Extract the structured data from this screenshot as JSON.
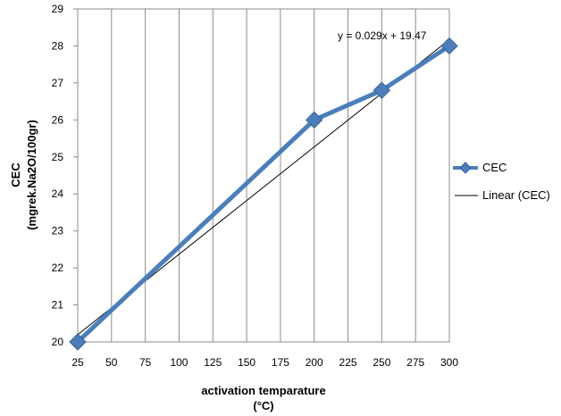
{
  "chart_data": {
    "type": "line",
    "xlabel_lines": [
      "activation temparature",
      "(°C)"
    ],
    "ylabel_lines": [
      "CEC",
      "(mgrek.Na2O/100gr)"
    ],
    "x_ticks": [
      25,
      50,
      75,
      100,
      125,
      150,
      175,
      200,
      225,
      250,
      275,
      300
    ],
    "xlim": [
      25,
      300
    ],
    "ylim": [
      20,
      29
    ],
    "y_ticks": [
      20,
      21,
      22,
      23,
      24,
      25,
      26,
      27,
      28,
      29
    ],
    "grid": "vertical",
    "legend_position": "right",
    "series": [
      {
        "name": "CEC",
        "color": "#4A7EBB",
        "marker": "diamond",
        "x": [
          25,
          200,
          250,
          300
        ],
        "y": [
          20,
          26,
          26.8,
          28
        ]
      }
    ],
    "trendline": {
      "name": "Linear (CEC)",
      "slope": 0.029,
      "intercept": 19.47,
      "equation_label": "y = 0.029x + 19.47",
      "color": "#000000"
    }
  }
}
